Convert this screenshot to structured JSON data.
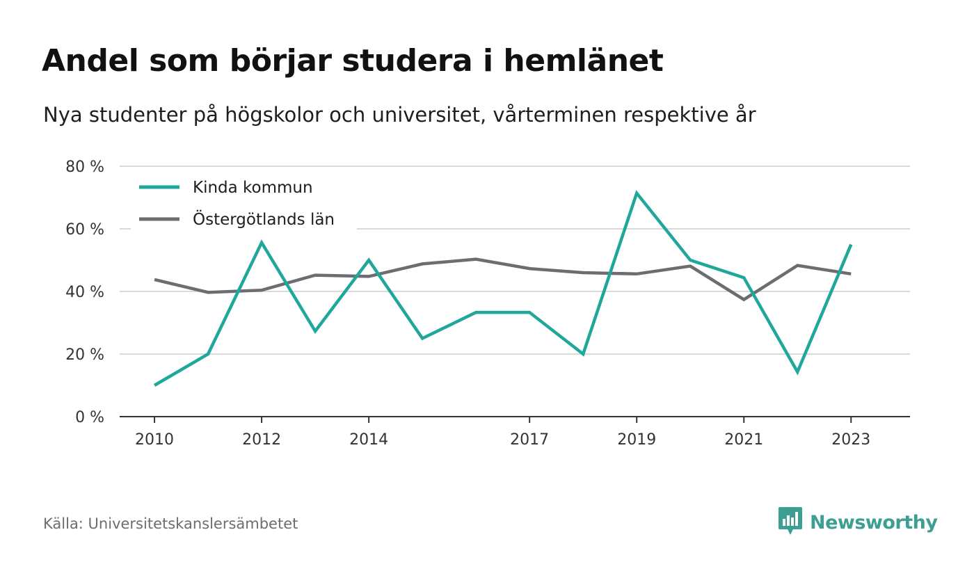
{
  "title": "Andel som börjar studera i hemlänet",
  "subtitle": "Nya studenter på högskolor och universitet, vårterminen respektive år",
  "source": "Källa: Universitetskanslersämbetet",
  "brand": {
    "name": "Newsworthy",
    "icon": "newsworthy-logo-icon",
    "color": "#3d9e94"
  },
  "chart_data": {
    "type": "line",
    "x": [
      2010,
      2011,
      2012,
      2013,
      2014,
      2015,
      2016,
      2017,
      2018,
      2019,
      2020,
      2021,
      2022,
      2023
    ],
    "x_tick_labels": [
      "2010",
      "2012",
      "2014",
      "2017",
      "2019",
      "2021",
      "2023"
    ],
    "y_tick_labels": [
      "0 %",
      "20 %",
      "40 %",
      "60 %",
      "80 %"
    ],
    "y_ticks": [
      0,
      20,
      40,
      60,
      80
    ],
    "ylim": [
      0,
      80
    ],
    "xlim": [
      2009.35,
      2024.1
    ],
    "grid": true,
    "legend_position": "top-left",
    "series": [
      {
        "name": "Kinda kommun",
        "color": "#1fa79b",
        "values": [
          10,
          20,
          55.6,
          27.3,
          50,
          25,
          33.3,
          33.3,
          20,
          71.4,
          50,
          44.4,
          14.3,
          55
        ]
      },
      {
        "name": "Östergötlands län",
        "color": "#6d6c72",
        "values": [
          43.8,
          39.7,
          40.4,
          45.2,
          44.8,
          48.8,
          50.3,
          47.3,
          46,
          45.6,
          48.1,
          37.4,
          48.3,
          45.6
        ]
      }
    ]
  }
}
